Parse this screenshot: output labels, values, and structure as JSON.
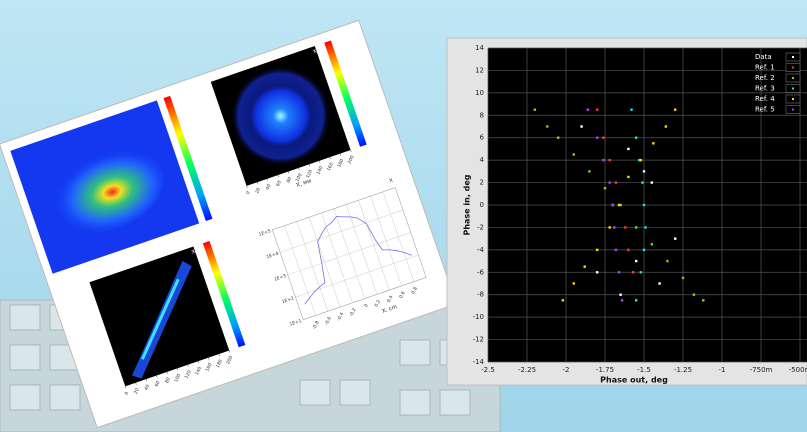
{
  "chart_data": [
    {
      "type": "scatter",
      "xlabel": "Phase out, deg",
      "ylabel": "Phase in, deg",
      "xlim": [
        -2.5,
        -0.5
      ],
      "xticks": [
        -2.5,
        -2.25,
        -2,
        -1.75,
        -1.5,
        -1.25,
        -1,
        {
          "value": -0.75,
          "label": "-750m"
        },
        {
          "value": -0.5,
          "label": "-500m"
        }
      ],
      "ylim": [
        -14,
        14
      ],
      "yticks": [
        -14,
        -12,
        -10,
        -8,
        -6,
        -4,
        -2,
        0,
        2,
        4,
        6,
        8,
        10,
        12,
        14
      ],
      "grid": true,
      "legend": "top-right",
      "series": [
        {
          "name": "Data",
          "color": "#ffffff",
          "x": [
            -1.9,
            -1.6,
            -1.45,
            -1.7,
            -1.3,
            -1.55,
            -1.8,
            -1.4,
            -1.65,
            -1.5
          ],
          "values": [
            7,
            5,
            2,
            0,
            -3,
            -5,
            -6,
            -7,
            -8,
            3
          ]
        },
        {
          "name": "Ref. 1",
          "color": "#ff3838",
          "x": [
            -1.8,
            -1.76,
            -1.72,
            -1.68,
            -1.65,
            -1.62,
            -1.6,
            -1.57,
            -1.55
          ],
          "values": [
            8.5,
            6,
            4,
            2,
            0,
            -2,
            -4,
            -6,
            -8.5
          ]
        },
        {
          "name": "Ref. 2",
          "color": "#80d020",
          "x": [
            -2.2,
            -2.12,
            -2.05,
            -1.95,
            -1.85,
            -1.75,
            -1.65,
            -1.55,
            -1.45,
            -1.35,
            -1.25,
            -1.18,
            -1.12
          ],
          "values": [
            8.5,
            7,
            6,
            4.5,
            3,
            1.5,
            0,
            -2,
            -3.5,
            -5,
            -6.5,
            -8,
            -8.5
          ]
        },
        {
          "name": "Ref. 3",
          "color": "#20e0e0",
          "x": [
            -1.58,
            -1.55,
            -1.53,
            -1.51,
            -1.5,
            -1.49,
            -1.5,
            -1.52,
            -1.55
          ],
          "values": [
            8.5,
            6,
            4,
            2,
            0,
            -2,
            -4,
            -6,
            -8.5
          ]
        },
        {
          "name": "Ref. 4",
          "color": "#ffd800",
          "x": [
            -1.3,
            -1.36,
            -1.44,
            -1.52,
            -1.6,
            -1.66,
            -1.72,
            -1.8,
            -1.88,
            -1.95,
            -2.02
          ],
          "values": [
            8.5,
            7,
            5.5,
            4,
            2.5,
            0,
            -2,
            -4,
            -5.5,
            -7,
            -8.5
          ]
        },
        {
          "name": "Ref. 5",
          "color": "#b040ff",
          "x": [
            -1.86,
            -1.8,
            -1.76,
            -1.72,
            -1.7,
            -1.69,
            -1.68,
            -1.66,
            -1.64
          ],
          "values": [
            8.5,
            6,
            4,
            2,
            0,
            -2,
            -4,
            -6,
            -8.5
          ]
        }
      ]
    },
    {
      "type": "heatmap",
      "title": "X-Y",
      "xlabel": "X, мм",
      "xlim": [
        0,
        200
      ],
      "xticks": [
        0,
        20,
        40,
        60,
        80,
        100,
        120,
        140,
        160,
        180,
        200
      ]
    },
    {
      "type": "heatmap",
      "title": "X-Y",
      "xlim": [
        0,
        200
      ],
      "xticks": [
        0,
        20,
        40,
        60,
        80,
        100,
        120,
        140,
        160,
        180,
        200
      ]
    },
    {
      "type": "line",
      "title": "X",
      "xlabel": "X, cm",
      "log": true,
      "xlim": [
        -1,
        1
      ],
      "xticks": [
        -0.8,
        -0.6,
        -0.4,
        -0.2,
        0,
        0.2,
        0.4,
        0.6,
        0.8
      ],
      "ylim": [
        10,
        100000
      ],
      "yticks": [
        {
          "value": 10,
          "label": "1E+1"
        },
        {
          "value": 100,
          "label": "1E+2"
        },
        {
          "value": 1000,
          "label": "1E+3"
        },
        {
          "value": 10000,
          "label": "1E+4"
        },
        {
          "value": 100000,
          "label": "1E+5"
        }
      ],
      "color": "#7070e0",
      "x": [
        -0.9,
        -0.8,
        -0.7,
        -0.6,
        -0.5,
        -0.45,
        -0.4,
        -0.3,
        -0.2,
        -0.1,
        0,
        0.1,
        0.2,
        0.3,
        0.4,
        0.45,
        0.5,
        0.6,
        0.7,
        0.8,
        0.9
      ],
      "values": [
        40,
        60,
        90,
        120,
        150,
        900,
        8000,
        15000,
        25000,
        30000,
        45000,
        35000,
        28000,
        20000,
        9000,
        1500,
        500,
        400,
        300,
        200,
        120
      ]
    }
  ]
}
